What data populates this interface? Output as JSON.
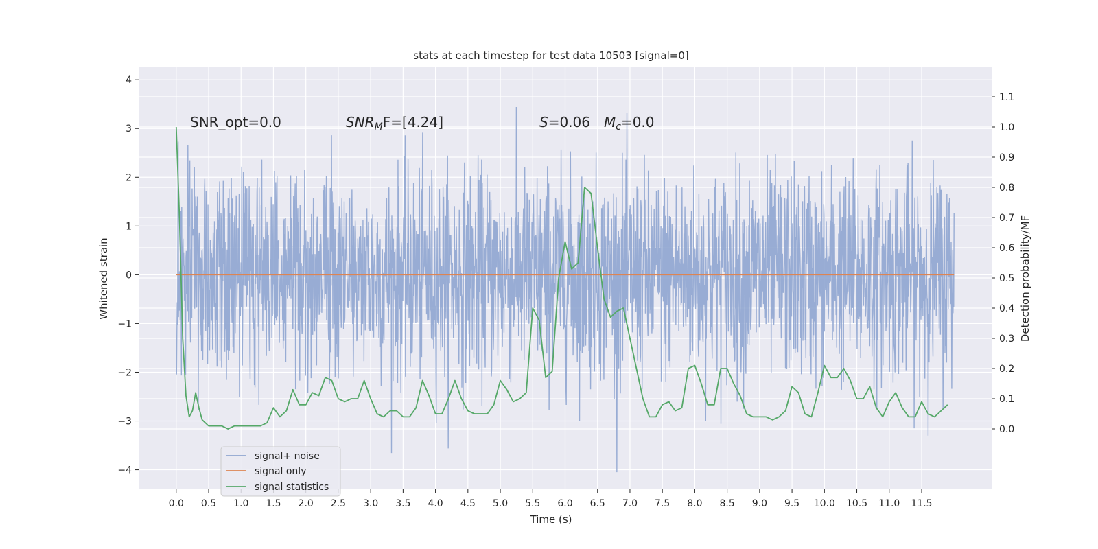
{
  "chart_data": {
    "type": "line",
    "title": "stats at each timestep for test data 10503 [signal=0]",
    "xlabel": "Time (s)",
    "ylabel_left": "Whitened strain",
    "ylabel_right": "Detection probability/MF",
    "xlim": [
      -0.58,
      12.58
    ],
    "ylim_left": [
      -4.4,
      4.27
    ],
    "ylim_right": [
      -0.2,
      1.2
    ],
    "x_ticks": [
      0.0,
      0.5,
      1.0,
      1.5,
      2.0,
      2.5,
      3.0,
      3.5,
      4.0,
      4.5,
      5.0,
      5.5,
      6.0,
      6.5,
      7.0,
      7.5,
      8.0,
      8.5,
      9.0,
      9.5,
      10.0,
      10.5,
      11.0,
      11.5
    ],
    "x_tick_labels": [
      "0.0",
      "0.5",
      "1.0",
      "1.5",
      "2.0",
      "2.5",
      "3.0",
      "3.5",
      "4.0",
      "4.5",
      "5.0",
      "5.5",
      "6.0",
      "6.5",
      "7.0",
      "7.5",
      "8.0",
      "8.5",
      "9.0",
      "9.5",
      "10.0",
      "10.5",
      "11.0",
      "11.5"
    ],
    "y_left_ticks": [
      -4,
      -3,
      -2,
      -1,
      0,
      1,
      2,
      3,
      4
    ],
    "y_left_tick_labels": [
      "−4",
      "−3",
      "−2",
      "−1",
      "0",
      "1",
      "2",
      "3",
      "4"
    ],
    "y_right_ticks": [
      0.0,
      0.1,
      0.2,
      0.3,
      0.4,
      0.5,
      0.6,
      0.7,
      0.8,
      0.9,
      1.0,
      1.1
    ],
    "y_right_tick_labels": [
      "0.0",
      "0.1",
      "0.2",
      "0.3",
      "0.4",
      "0.5",
      "0.6",
      "0.7",
      "0.8",
      "0.9",
      "1.0",
      "1.1"
    ],
    "noise_series": {
      "name": "signal+ noise",
      "t_start": 0.0,
      "t_end": 12.0,
      "sigma": 1.0,
      "description_range": [
        -4.05,
        3.88
      ]
    },
    "signal_series": {
      "name": "signal only",
      "constant_value": 0.0
    },
    "stat_series": {
      "name": "signal statistics",
      "x": [
        0.0,
        0.05,
        0.1,
        0.15,
        0.2,
        0.25,
        0.3,
        0.35,
        0.4,
        0.45,
        0.5,
        0.6,
        0.7,
        0.8,
        0.9,
        1.0,
        1.1,
        1.2,
        1.3,
        1.4,
        1.5,
        1.6,
        1.7,
        1.8,
        1.9,
        2.0,
        2.1,
        2.2,
        2.3,
        2.4,
        2.5,
        2.6,
        2.7,
        2.8,
        2.9,
        3.0,
        3.1,
        3.2,
        3.3,
        3.4,
        3.5,
        3.6,
        3.7,
        3.8,
        3.9,
        4.0,
        4.1,
        4.2,
        4.3,
        4.4,
        4.5,
        4.6,
        4.7,
        4.8,
        4.9,
        5.0,
        5.1,
        5.2,
        5.3,
        5.4,
        5.5,
        5.6,
        5.7,
        5.8,
        5.9,
        6.0,
        6.1,
        6.2,
        6.3,
        6.4,
        6.5,
        6.6,
        6.7,
        6.8,
        6.9,
        7.0,
        7.1,
        7.2,
        7.3,
        7.4,
        7.5,
        7.6,
        7.7,
        7.8,
        7.9,
        8.0,
        8.1,
        8.2,
        8.3,
        8.4,
        8.5,
        8.6,
        8.7,
        8.8,
        8.9,
        9.0,
        9.1,
        9.2,
        9.3,
        9.4,
        9.5,
        9.6,
        9.7,
        9.8,
        9.9,
        10.0,
        10.1,
        10.2,
        10.3,
        10.4,
        10.5,
        10.6,
        10.7,
        10.8,
        10.9,
        11.0,
        11.1,
        11.2,
        11.3,
        11.4,
        11.5,
        11.6,
        11.7,
        11.8,
        11.9
      ],
      "values": [
        1.0,
        0.7,
        0.3,
        0.11,
        0.04,
        0.06,
        0.12,
        0.07,
        0.03,
        0.02,
        0.01,
        0.01,
        0.01,
        0.0,
        0.01,
        0.01,
        0.01,
        0.01,
        0.01,
        0.02,
        0.07,
        0.04,
        0.06,
        0.13,
        0.08,
        0.08,
        0.12,
        0.11,
        0.17,
        0.16,
        0.1,
        0.09,
        0.1,
        0.1,
        0.16,
        0.1,
        0.05,
        0.04,
        0.06,
        0.06,
        0.04,
        0.04,
        0.07,
        0.16,
        0.11,
        0.05,
        0.05,
        0.1,
        0.16,
        0.1,
        0.06,
        0.05,
        0.05,
        0.05,
        0.08,
        0.16,
        0.13,
        0.09,
        0.1,
        0.12,
        0.4,
        0.36,
        0.17,
        0.19,
        0.5,
        0.62,
        0.53,
        0.55,
        0.8,
        0.78,
        0.6,
        0.43,
        0.37,
        0.39,
        0.4,
        0.3,
        0.2,
        0.1,
        0.04,
        0.04,
        0.08,
        0.09,
        0.06,
        0.07,
        0.2,
        0.21,
        0.15,
        0.08,
        0.08,
        0.2,
        0.2,
        0.15,
        0.11,
        0.05,
        0.04,
        0.04,
        0.04,
        0.03,
        0.04,
        0.06,
        0.14,
        0.12,
        0.05,
        0.04,
        0.12,
        0.21,
        0.17,
        0.17,
        0.2,
        0.16,
        0.1,
        0.1,
        0.14,
        0.07,
        0.04,
        0.09,
        0.12,
        0.07,
        0.04,
        0.04,
        0.09,
        0.05,
        0.04,
        0.06,
        0.08
      ]
    },
    "annotations": {
      "snr_opt": "SNR_opt=0.0",
      "snr_mf_main": "SNR",
      "snr_mf_sub": "M",
      "snr_mf_rest": "F=[4.24]",
      "s_label": "S",
      "s_value": "=0.06",
      "mc_main": "M",
      "mc_sub": "c",
      "mc_value": "=0.0"
    },
    "legend": {
      "position": "lower-left",
      "entries": [
        "signal+ noise",
        "signal only",
        "signal statistics"
      ]
    },
    "colors": {
      "noise": "#8fa5d0",
      "signal": "#dd8452",
      "stat": "#55a868",
      "background": "#eaeaf2",
      "grid": "#ffffff"
    }
  }
}
